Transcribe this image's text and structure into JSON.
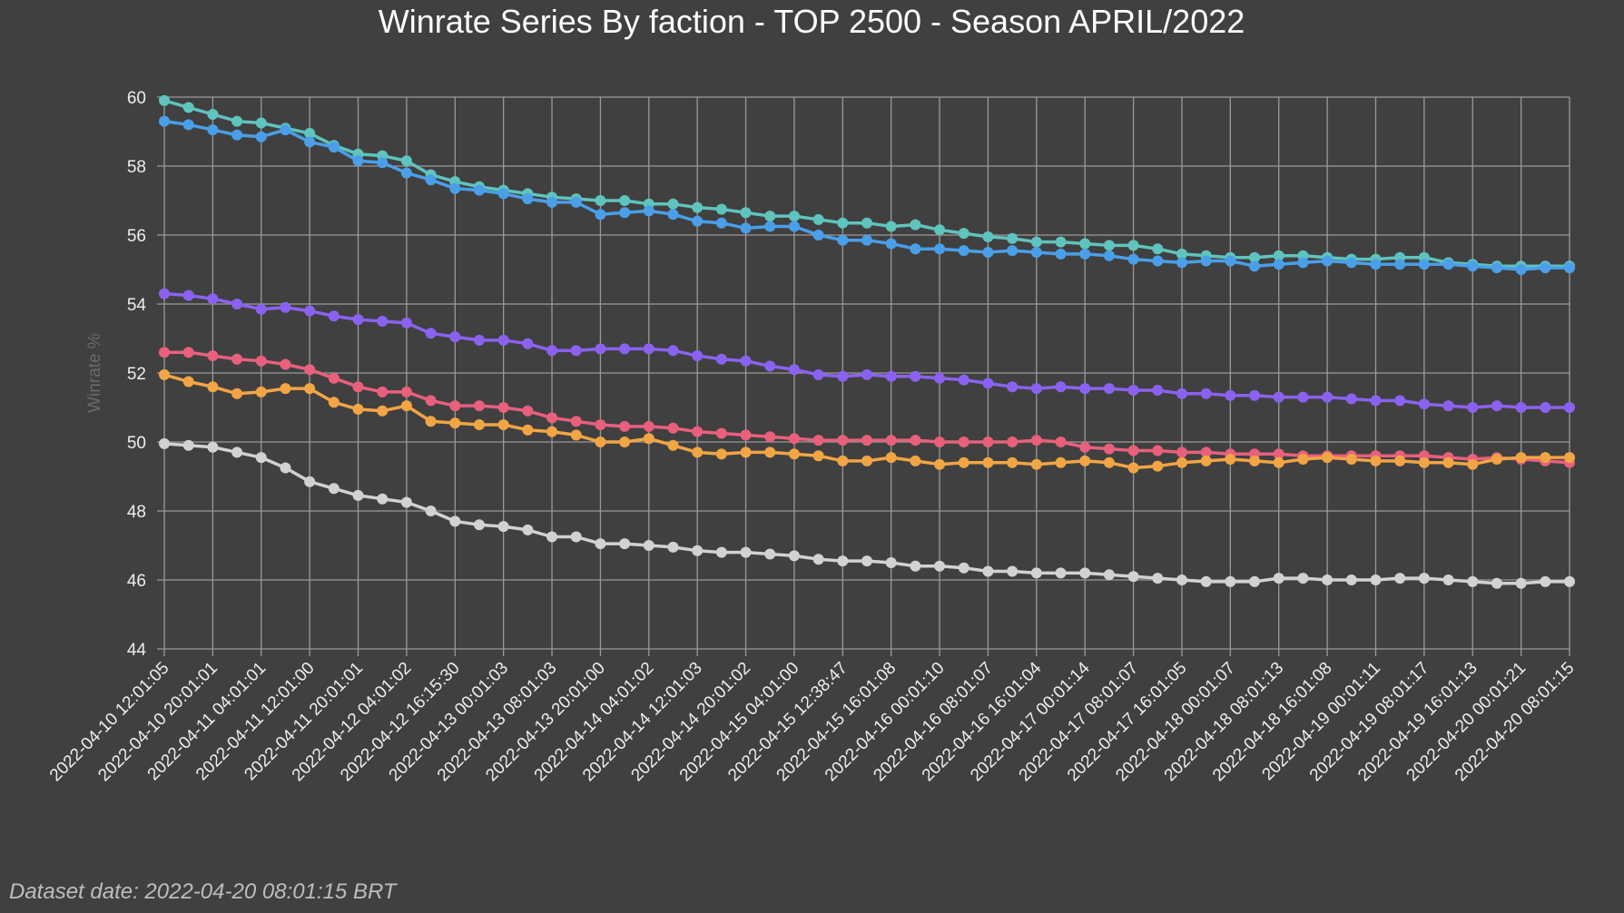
{
  "chart_data": {
    "type": "line",
    "title": "Winrate Series By faction - TOP 2500 - Season APRIL/2022",
    "xlabel": "",
    "ylabel": "Winrate %",
    "ylim": [
      44,
      60
    ],
    "yticks": [
      44,
      46,
      48,
      50,
      52,
      54,
      56,
      58,
      60
    ],
    "grid": true,
    "point_count": 59,
    "x_tick_every": 2,
    "x_ticks": [
      "2022-04-10 12:01:05",
      "2022-04-10 20:01:01",
      "2022-04-11 04:01:01",
      "2022-04-11 12:01:00",
      "2022-04-11 20:01:01",
      "2022-04-12 04:01:02",
      "2022-04-12 16:15:30",
      "2022-04-13 00:01:03",
      "2022-04-13 08:01:03",
      "2022-04-13 20:01:00",
      "2022-04-14 04:01:02",
      "2022-04-14 12:01:03",
      "2022-04-14 20:01:02",
      "2022-04-15 04:01:00",
      "2022-04-15 12:38:47",
      "2022-04-15 16:01:08",
      "2022-04-16 00:01:10",
      "2022-04-16 08:01:07",
      "2022-04-16 16:01:04",
      "2022-04-17 00:01:14",
      "2022-04-17 08:01:07",
      "2022-04-17 16:01:05",
      "2022-04-18 00:01:07",
      "2022-04-18 08:01:13",
      "2022-04-18 16:01:08",
      "2022-04-19 00:01:11",
      "2022-04-19 08:01:17",
      "2022-04-19 16:01:13",
      "2022-04-20 00:01:21",
      "2022-04-20 08:01:15"
    ],
    "series": [
      {
        "color": "#5fc4bd",
        "values": [
          59.9,
          59.7,
          59.5,
          59.3,
          59.25,
          59.1,
          58.95,
          58.6,
          58.35,
          58.3,
          58.15,
          57.75,
          57.55,
          57.4,
          57.3,
          57.2,
          57.1,
          57.05,
          57.0,
          57.0,
          56.9,
          56.9,
          56.8,
          56.75,
          56.65,
          56.55,
          56.55,
          56.45,
          56.35,
          56.35,
          56.25,
          56.3,
          56.15,
          56.05,
          55.95,
          55.9,
          55.8,
          55.8,
          55.75,
          55.7,
          55.7,
          55.6,
          55.45,
          55.4,
          55.35,
          55.35,
          55.4,
          55.4,
          55.35,
          55.3,
          55.3,
          55.35,
          55.35,
          55.2,
          55.15,
          55.1,
          55.1,
          55.1,
          55.1
        ]
      },
      {
        "color": "#4a9fe8",
        "values": [
          59.3,
          59.2,
          59.05,
          58.9,
          58.85,
          59.05,
          58.7,
          58.55,
          58.15,
          58.1,
          57.8,
          57.6,
          57.35,
          57.3,
          57.2,
          57.05,
          56.95,
          56.95,
          56.6,
          56.65,
          56.7,
          56.6,
          56.4,
          56.35,
          56.2,
          56.25,
          56.25,
          56.0,
          55.85,
          55.85,
          55.75,
          55.6,
          55.6,
          55.55,
          55.5,
          55.55,
          55.5,
          55.45,
          55.45,
          55.4,
          55.3,
          55.25,
          55.2,
          55.25,
          55.25,
          55.1,
          55.15,
          55.2,
          55.25,
          55.2,
          55.15,
          55.15,
          55.15,
          55.15,
          55.1,
          55.05,
          55.0,
          55.05,
          55.05
        ]
      },
      {
        "color": "#8b62f0",
        "values": [
          54.3,
          54.25,
          54.15,
          54.0,
          53.85,
          53.9,
          53.8,
          53.65,
          53.55,
          53.5,
          53.45,
          53.15,
          53.05,
          52.95,
          52.95,
          52.85,
          52.65,
          52.65,
          52.7,
          52.7,
          52.7,
          52.65,
          52.5,
          52.4,
          52.35,
          52.2,
          52.1,
          51.95,
          51.9,
          51.95,
          51.9,
          51.9,
          51.85,
          51.8,
          51.7,
          51.6,
          51.55,
          51.6,
          51.55,
          51.55,
          51.5,
          51.5,
          51.4,
          51.4,
          51.35,
          51.35,
          51.3,
          51.3,
          51.3,
          51.25,
          51.2,
          51.2,
          51.1,
          51.05,
          51.0,
          51.05,
          51.0,
          51.0,
          51.0
        ]
      },
      {
        "color": "#e9607c",
        "values": [
          52.6,
          52.6,
          52.5,
          52.4,
          52.35,
          52.25,
          52.1,
          51.85,
          51.6,
          51.45,
          51.45,
          51.2,
          51.05,
          51.05,
          51.0,
          50.9,
          50.7,
          50.6,
          50.5,
          50.45,
          50.45,
          50.4,
          50.3,
          50.25,
          50.2,
          50.15,
          50.1,
          50.05,
          50.05,
          50.05,
          50.05,
          50.05,
          50.0,
          50.0,
          50.0,
          50.0,
          50.05,
          50.0,
          49.85,
          49.8,
          49.75,
          49.75,
          49.7,
          49.7,
          49.65,
          49.65,
          49.65,
          49.6,
          49.6,
          49.6,
          49.6,
          49.6,
          49.6,
          49.55,
          49.5,
          49.55,
          49.5,
          49.45,
          49.4
        ]
      },
      {
        "color": "#f2a545",
        "values": [
          51.95,
          51.75,
          51.6,
          51.4,
          51.45,
          51.55,
          51.55,
          51.15,
          50.95,
          50.9,
          51.05,
          50.6,
          50.55,
          50.5,
          50.5,
          50.35,
          50.3,
          50.2,
          50.0,
          50.0,
          50.1,
          49.9,
          49.7,
          49.65,
          49.7,
          49.7,
          49.65,
          49.6,
          49.45,
          49.45,
          49.55,
          49.45,
          49.35,
          49.4,
          49.4,
          49.4,
          49.35,
          49.4,
          49.45,
          49.4,
          49.25,
          49.3,
          49.4,
          49.45,
          49.5,
          49.45,
          49.4,
          49.5,
          49.55,
          49.5,
          49.45,
          49.45,
          49.4,
          49.4,
          49.35,
          49.5,
          49.55,
          49.55,
          49.55
        ]
      },
      {
        "color": "#d2d2d2",
        "values": [
          49.95,
          49.9,
          49.85,
          49.7,
          49.55,
          49.25,
          48.85,
          48.65,
          48.45,
          48.35,
          48.25,
          48.0,
          47.7,
          47.6,
          47.55,
          47.45,
          47.25,
          47.25,
          47.05,
          47.05,
          47.0,
          46.95,
          46.85,
          46.8,
          46.8,
          46.75,
          46.7,
          46.6,
          46.55,
          46.55,
          46.5,
          46.4,
          46.4,
          46.35,
          46.25,
          46.25,
          46.2,
          46.2,
          46.2,
          46.15,
          46.1,
          46.05,
          46.0,
          45.95,
          45.95,
          45.95,
          46.05,
          46.05,
          46.0,
          46.0,
          46.0,
          46.05,
          46.05,
          46.0,
          45.95,
          45.9,
          45.9,
          45.95,
          45.95
        ]
      }
    ]
  },
  "footer": "Dataset date: 2022-04-20 08:01:15 BRT"
}
